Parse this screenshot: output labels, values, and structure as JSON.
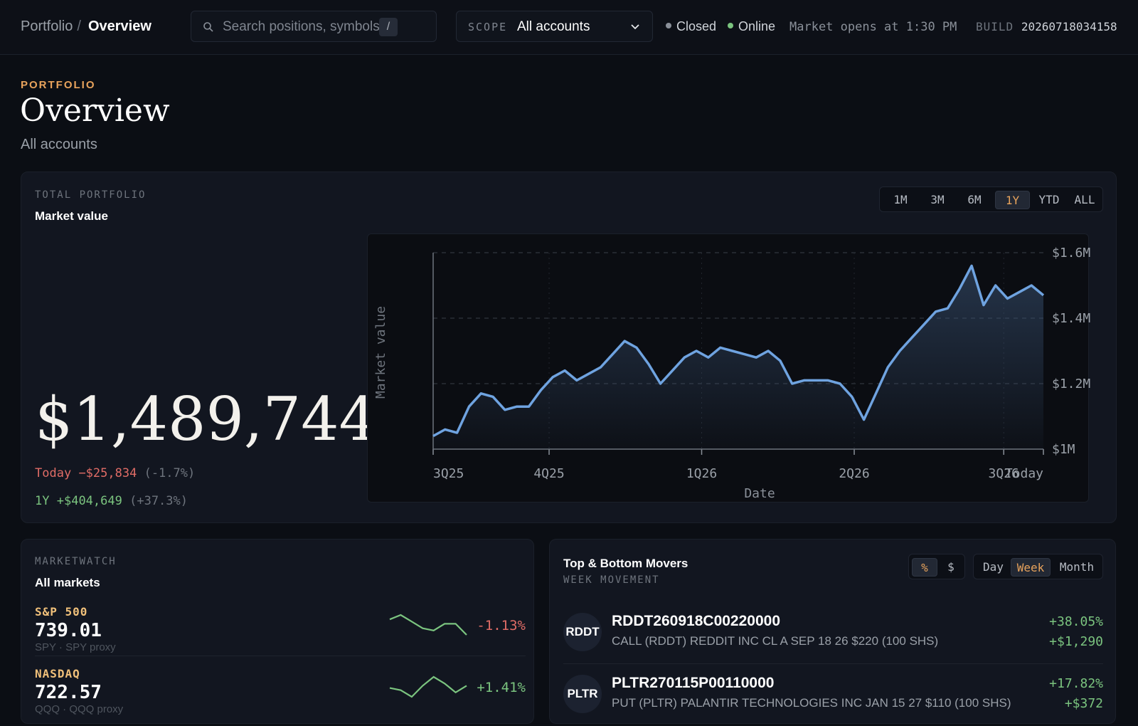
{
  "topbar": {
    "breadcrumb_root": "Portfolio",
    "breadcrumb_sep": "/",
    "breadcrumb_current": "Overview",
    "search_placeholder": "Search positions, symbols",
    "search_shortcut": "/",
    "scope_label": "SCOPE",
    "scope_value": "All accounts",
    "market_status": "Closed",
    "connection_status": "Online",
    "market_opens": "Market opens at 1:30 PM",
    "build_label": "BUILD",
    "build_value": "20260718034158"
  },
  "header": {
    "eyebrow": "PORTFOLIO",
    "title": "Overview",
    "subtitle": "All accounts"
  },
  "portfolio": {
    "label": "TOTAL PORTFOLIO",
    "title": "Market value",
    "value": "$1,489,744",
    "today_label": "Today",
    "today_change": "−$25,834",
    "today_pct": "(-1.7%)",
    "year_label": "1Y",
    "year_change": "+$404,649",
    "year_pct": "(+37.3%)",
    "ranges": [
      "1M",
      "3M",
      "6M",
      "1Y",
      "YTD",
      "ALL"
    ],
    "active_range": "1Y"
  },
  "colors": {
    "accent": "#e8a35c",
    "positive": "#7bc47f",
    "negative": "#e06c66",
    "line": "#6fa3e0"
  },
  "chart_data": {
    "type": "area",
    "xlabel": "Date",
    "ylabel": "Market value",
    "x_ticks": [
      "3Q25",
      "4Q25",
      "1Q26",
      "2Q26",
      "3Q26",
      "Today"
    ],
    "y_ticks": [
      "$1M",
      "$1.2M",
      "$1.4M",
      "$1.6M"
    ],
    "ylim": [
      1000000,
      1600000
    ],
    "grid": "dashed horizontal and vertical",
    "series": [
      {
        "values": [
          1040000,
          1060000,
          1050000,
          1130000,
          1170000,
          1160000,
          1120000,
          1130000,
          1130000,
          1180000,
          1220000,
          1240000,
          1210000,
          1230000,
          1250000,
          1290000,
          1330000,
          1310000,
          1260000,
          1200000,
          1240000,
          1280000,
          1300000,
          1280000,
          1310000,
          1300000,
          1290000,
          1280000,
          1300000,
          1270000,
          1200000,
          1210000,
          1210000,
          1210000,
          1200000,
          1160000,
          1090000,
          1170000,
          1250000,
          1300000,
          1340000,
          1380000,
          1420000,
          1430000,
          1490000,
          1560000,
          1440000,
          1500000,
          1460000,
          1480000,
          1500000,
          1470000
        ]
      }
    ]
  },
  "marketwatch": {
    "label": "MARKETWATCH",
    "title": "All markets",
    "items": [
      {
        "name": "S&P 500",
        "value": "739.01",
        "source": "SPY · SPY proxy",
        "change": "-1.13%",
        "direction": "down",
        "spark": [
          5,
          7,
          4,
          1,
          0,
          3,
          3,
          -2
        ]
      },
      {
        "name": "NASDAQ",
        "value": "722.57",
        "source": "QQQ · QQQ proxy",
        "change": "+1.41%",
        "direction": "up",
        "spark": [
          2,
          1,
          -2,
          3,
          7,
          4,
          0,
          3
        ]
      }
    ]
  },
  "movers": {
    "title": "Top & Bottom Movers",
    "subtitle": "WEEK MOVEMENT",
    "units": [
      "%",
      "$"
    ],
    "active_unit": "%",
    "periods": [
      "Day",
      "Week",
      "Month"
    ],
    "active_period": "Week",
    "items": [
      {
        "ticker": "RDDT",
        "symbol": "RDDT260918C00220000",
        "description": "CALL (RDDT) REDDIT INC CL A SEP 18 26 $220 (100 SHS)",
        "pct": "+38.05%",
        "amount": "+$1,290"
      },
      {
        "ticker": "PLTR",
        "symbol": "PLTR270115P00110000",
        "description": "PUT (PLTR) PALANTIR TECHNOLOGIES INC JAN 15 27 $110 (100 SHS)",
        "pct": "+17.82%",
        "amount": "+$372"
      }
    ]
  }
}
